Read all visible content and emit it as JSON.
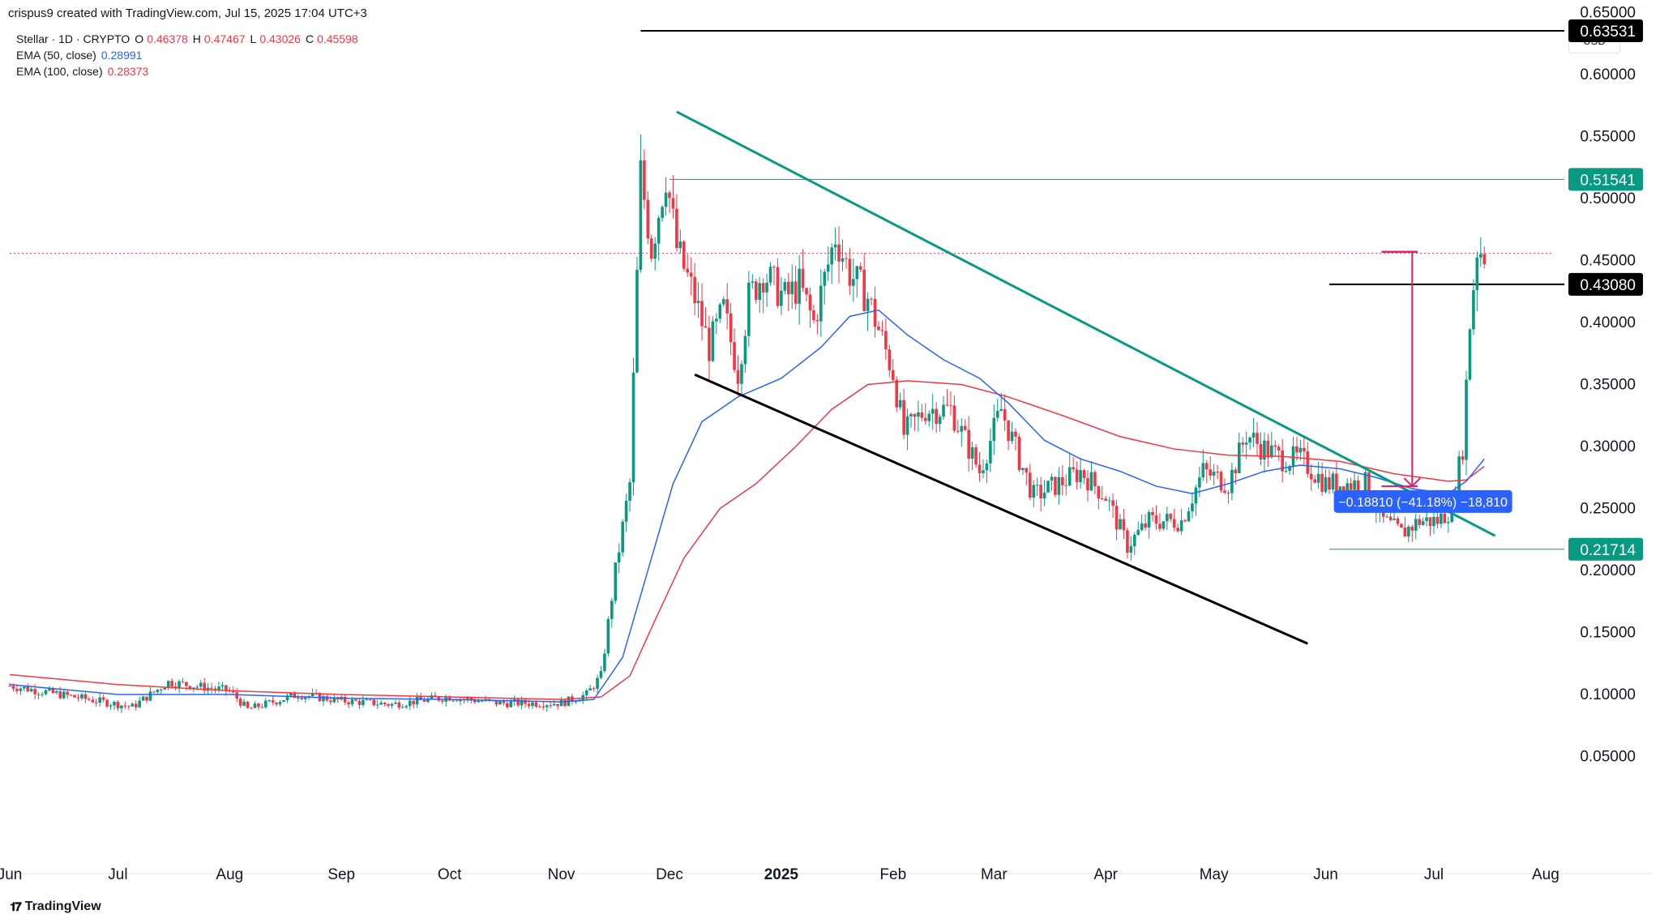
{
  "header": {
    "credit": "crispus9 created with TradingView.com, Jul 15, 2025 17:04 UTC+3"
  },
  "legend": {
    "symbol": "Stellar · 1D · CRYPTO",
    "open_label": "O",
    "open": "0.46378",
    "high_label": "H",
    "high": "0.47467",
    "low_label": "L",
    "low": "0.43026",
    "close_label": "C",
    "close": "0.45598",
    "ema50_label": "EMA (50, close)",
    "ema50_value": "0.28991",
    "ema100_label": "EMA (100, close)",
    "ema100_value": "0.28373"
  },
  "currency": "USD",
  "footer": {
    "logo_icon": "tradingview-logo-icon",
    "brand": "TradingView"
  },
  "colors": {
    "up": "#089981",
    "down": "#f23645",
    "ema50": "#2962ff",
    "ema100": "#f23645",
    "trendline": "#089981",
    "channel": "#000000",
    "measure": "#2962ff",
    "target": "#e91e63"
  },
  "chart_data": {
    "type": "candlestick",
    "title": "Stellar · 1D · CRYPTO",
    "ylim": [
      0.0,
      0.68
    ],
    "y_ticks": [
      "0.65000",
      "0.60000",
      "0.55000",
      "0.50000",
      "0.45000",
      "0.40000",
      "0.35000",
      "0.30000",
      "0.25000",
      "0.20000",
      "0.15000",
      "0.10000",
      "0.05000"
    ],
    "y_tick_values": [
      0.65,
      0.6,
      0.55,
      0.5,
      0.45,
      0.4,
      0.35,
      0.3,
      0.25,
      0.2,
      0.15,
      0.1,
      0.05
    ],
    "x_ticks": [
      "Jun",
      "Jul",
      "Aug",
      "Sep",
      "Oct",
      "Nov",
      "Dec",
      "2025",
      "Feb",
      "Mar",
      "Apr",
      "May",
      "Jun",
      "Jul",
      "Aug"
    ],
    "x_tick_dates": [
      "2024-06-01",
      "2024-07-01",
      "2024-08-01",
      "2024-09-01",
      "2024-10-01",
      "2024-11-01",
      "2024-12-01",
      "2025-01-01",
      "2025-02-01",
      "2025-03-01",
      "2025-04-01",
      "2025-05-01",
      "2025-06-01",
      "2025-07-01",
      "2025-08-01"
    ],
    "x_range": [
      "2024-06-01",
      "2025-08-08"
    ],
    "current_price": 0.45598,
    "price_labels": [
      {
        "text": "0.63531",
        "value": 0.63531,
        "style": "black"
      },
      {
        "text": "0.51541",
        "value": 0.51541,
        "style": "green"
      },
      {
        "text": "0.43080",
        "value": 0.4308,
        "style": "black"
      },
      {
        "text": "0.21714",
        "value": 0.21714,
        "style": "green"
      }
    ],
    "horizontal_lines": [
      {
        "value": 0.63531,
        "from": "2024-11-23",
        "color": "black"
      },
      {
        "value": 0.51541,
        "from": "2024-12-01",
        "color": "green"
      },
      {
        "value": 0.4308,
        "from": "2025-06-02",
        "color": "black"
      },
      {
        "value": 0.21714,
        "from": "2025-06-02",
        "color": "green"
      }
    ],
    "trendlines": [
      {
        "name": "descending resistance",
        "color": "green",
        "points": [
          [
            "2024-12-03",
            0.57
          ],
          [
            "2025-07-18",
            0.228
          ]
        ]
      },
      {
        "name": "channel support",
        "color": "black",
        "points": [
          [
            "2024-12-08",
            0.358
          ],
          [
            "2025-05-27",
            0.141
          ]
        ]
      }
    ],
    "measure": {
      "label": "−0.18810 (−41.18%) −18,810",
      "anchor_date": "2025-06-28",
      "anchor_value": 0.255
    },
    "target_marker": {
      "top": 0.457,
      "bottom": 0.268,
      "date": "2025-06-25",
      "from": "2025-06-12",
      "to": "2025-07-10"
    },
    "ohlc_anchors": [
      [
        "2024-06-01",
        0.107
      ],
      [
        "2024-06-15",
        0.1
      ],
      [
        "2024-07-05",
        0.09
      ],
      [
        "2024-07-15",
        0.11
      ],
      [
        "2024-08-01",
        0.103
      ],
      [
        "2024-08-06",
        0.088
      ],
      [
        "2024-08-20",
        0.1
      ],
      [
        "2024-09-01",
        0.095
      ],
      [
        "2024-09-15",
        0.092
      ],
      [
        "2024-10-01",
        0.098
      ],
      [
        "2024-10-15",
        0.093
      ],
      [
        "2024-11-01",
        0.093
      ],
      [
        "2024-11-08",
        0.1
      ],
      [
        "2024-11-12",
        0.115
      ],
      [
        "2024-11-16",
        0.2
      ],
      [
        "2024-11-20",
        0.27
      ],
      [
        "2024-11-23",
        0.52
      ],
      [
        "2024-11-26",
        0.46
      ],
      [
        "2024-11-30",
        0.52
      ],
      [
        "2024-12-03",
        0.46
      ],
      [
        "2024-12-08",
        0.42
      ],
      [
        "2024-12-12",
        0.38
      ],
      [
        "2024-12-16",
        0.41
      ],
      [
        "2024-12-20",
        0.36
      ],
      [
        "2024-12-23",
        0.42
      ],
      [
        "2024-12-27",
        0.44
      ],
      [
        "2025-01-02",
        0.42
      ],
      [
        "2025-01-06",
        0.43
      ],
      [
        "2025-01-10",
        0.4
      ],
      [
        "2025-01-16",
        0.47
      ],
      [
        "2025-01-20",
        0.44
      ],
      [
        "2025-01-25",
        0.42
      ],
      [
        "2025-02-01",
        0.36
      ],
      [
        "2025-02-04",
        0.31
      ],
      [
        "2025-02-10",
        0.33
      ],
      [
        "2025-02-17",
        0.33
      ],
      [
        "2025-02-25",
        0.28
      ],
      [
        "2025-03-03",
        0.33
      ],
      [
        "2025-03-08",
        0.29
      ],
      [
        "2025-03-12",
        0.26
      ],
      [
        "2025-03-19",
        0.27
      ],
      [
        "2025-03-25",
        0.28
      ],
      [
        "2025-04-01",
        0.26
      ],
      [
        "2025-04-07",
        0.22
      ],
      [
        "2025-04-13",
        0.24
      ],
      [
        "2025-04-22",
        0.24
      ],
      [
        "2025-04-28",
        0.28
      ],
      [
        "2025-05-05",
        0.27
      ],
      [
        "2025-05-10",
        0.31
      ],
      [
        "2025-05-14",
        0.3
      ],
      [
        "2025-05-20",
        0.29
      ],
      [
        "2025-05-25",
        0.29
      ],
      [
        "2025-06-01",
        0.27
      ],
      [
        "2025-06-07",
        0.27
      ],
      [
        "2025-06-12",
        0.27
      ],
      [
        "2025-06-17",
        0.24
      ],
      [
        "2025-06-22",
        0.23
      ],
      [
        "2025-06-27",
        0.24
      ],
      [
        "2025-07-02",
        0.24
      ],
      [
        "2025-07-06",
        0.25
      ],
      [
        "2025-07-09",
        0.3
      ],
      [
        "2025-07-11",
        0.4
      ],
      [
        "2025-07-13",
        0.46
      ],
      [
        "2025-07-15",
        0.456
      ]
    ],
    "ema50": [
      [
        "2024-06-01",
        0.108
      ],
      [
        "2024-07-01",
        0.1
      ],
      [
        "2024-08-01",
        0.1
      ],
      [
        "2024-09-01",
        0.097
      ],
      [
        "2024-10-01",
        0.096
      ],
      [
        "2024-11-01",
        0.094
      ],
      [
        "2024-11-10",
        0.096
      ],
      [
        "2024-11-18",
        0.13
      ],
      [
        "2024-11-25",
        0.2
      ],
      [
        "2024-12-02",
        0.27
      ],
      [
        "2024-12-10",
        0.32
      ],
      [
        "2024-12-20",
        0.34
      ],
      [
        "2025-01-01",
        0.355
      ],
      [
        "2025-01-12",
        0.38
      ],
      [
        "2025-01-20",
        0.405
      ],
      [
        "2025-01-28",
        0.41
      ],
      [
        "2025-02-05",
        0.39
      ],
      [
        "2025-02-15",
        0.37
      ],
      [
        "2025-02-25",
        0.355
      ],
      [
        "2025-03-05",
        0.335
      ],
      [
        "2025-03-15",
        0.305
      ],
      [
        "2025-03-25",
        0.29
      ],
      [
        "2025-04-05",
        0.28
      ],
      [
        "2025-04-15",
        0.268
      ],
      [
        "2025-04-25",
        0.262
      ],
      [
        "2025-05-05",
        0.27
      ],
      [
        "2025-05-15",
        0.28
      ],
      [
        "2025-05-25",
        0.285
      ],
      [
        "2025-06-05",
        0.282
      ],
      [
        "2025-06-15",
        0.275
      ],
      [
        "2025-06-25",
        0.266
      ],
      [
        "2025-07-05",
        0.262
      ],
      [
        "2025-07-10",
        0.272
      ],
      [
        "2025-07-15",
        0.29
      ]
    ],
    "ema100": [
      [
        "2024-06-01",
        0.116
      ],
      [
        "2024-07-01",
        0.108
      ],
      [
        "2024-08-01",
        0.103
      ],
      [
        "2024-09-01",
        0.1
      ],
      [
        "2024-10-01",
        0.098
      ],
      [
        "2024-11-01",
        0.096
      ],
      [
        "2024-11-12",
        0.098
      ],
      [
        "2024-11-20",
        0.115
      ],
      [
        "2024-11-27",
        0.16
      ],
      [
        "2024-12-05",
        0.21
      ],
      [
        "2024-12-15",
        0.25
      ],
      [
        "2024-12-25",
        0.27
      ],
      [
        "2025-01-05",
        0.3
      ],
      [
        "2025-01-15",
        0.33
      ],
      [
        "2025-01-25",
        0.35
      ],
      [
        "2025-02-05",
        0.353
      ],
      [
        "2025-02-20",
        0.35
      ],
      [
        "2025-03-05",
        0.34
      ],
      [
        "2025-03-20",
        0.325
      ],
      [
        "2025-04-05",
        0.308
      ],
      [
        "2025-04-20",
        0.298
      ],
      [
        "2025-05-05",
        0.293
      ],
      [
        "2025-05-20",
        0.292
      ],
      [
        "2025-06-05",
        0.288
      ],
      [
        "2025-06-20",
        0.278
      ],
      [
        "2025-07-05",
        0.272
      ],
      [
        "2025-07-10",
        0.273
      ],
      [
        "2025-07-15",
        0.284
      ]
    ]
  }
}
